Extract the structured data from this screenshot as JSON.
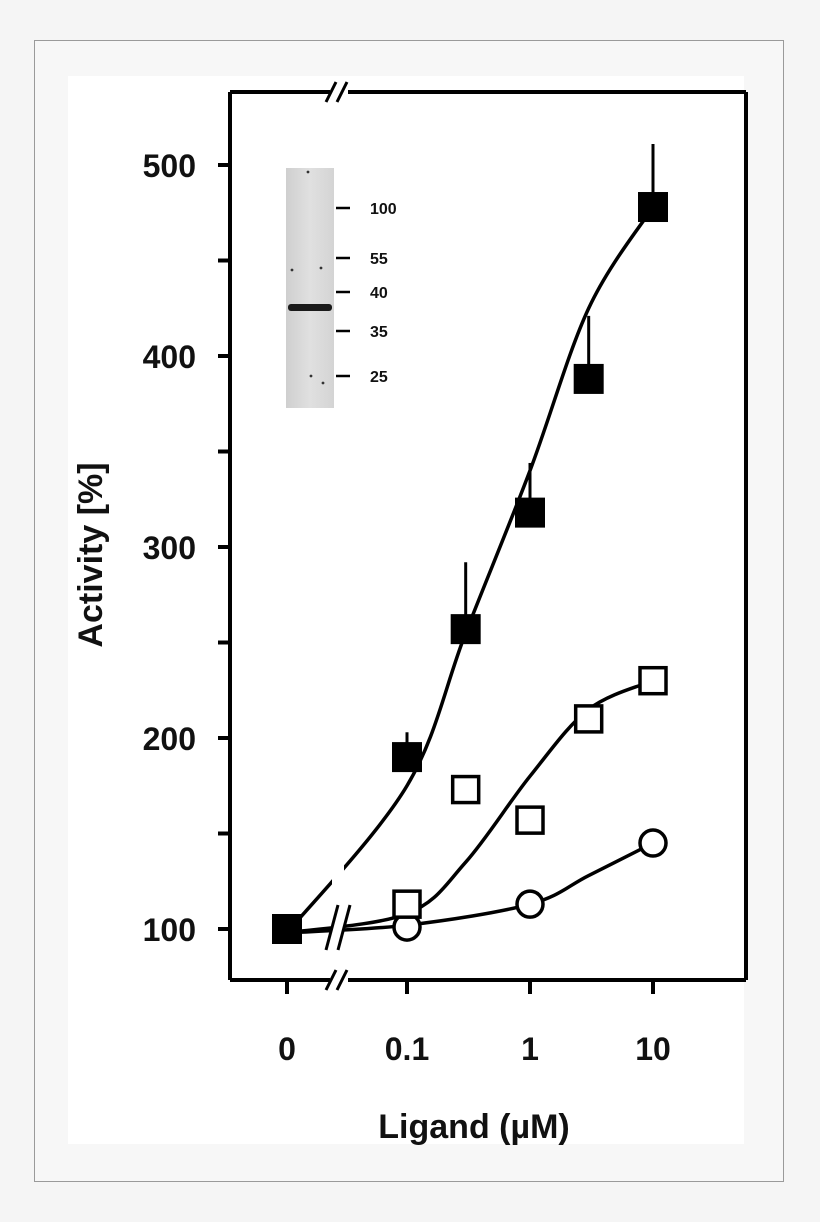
{
  "chart_data": {
    "type": "scatter",
    "xlabel": "Ligand (µM)",
    "ylabel": "Activity [%]",
    "x_scale": "log with broken axis at zero",
    "x_ticks": [
      {
        "value": 0,
        "label": "0"
      },
      {
        "value": 0.1,
        "label": "0.1"
      },
      {
        "value": 1,
        "label": "1"
      },
      {
        "value": 10,
        "label": "10"
      }
    ],
    "y_ticks": [
      {
        "value": 100,
        "label": "100"
      },
      {
        "value": 200,
        "label": "200"
      },
      {
        "value": 300,
        "label": "300"
      },
      {
        "value": 400,
        "label": "400"
      },
      {
        "value": 500,
        "label": "500"
      }
    ],
    "ylim": [
      80,
      540
    ],
    "series": [
      {
        "marker": "filled-square",
        "points": [
          {
            "x": 0,
            "y": 100
          },
          {
            "x": 0.1,
            "y": 190,
            "err": 13
          },
          {
            "x": 0.3,
            "y": 257,
            "err": 35
          },
          {
            "x": 1,
            "y": 318,
            "err": 26
          },
          {
            "x": 3,
            "y": 388,
            "err": 33
          },
          {
            "x": 10,
            "y": 478,
            "err": 33
          }
        ],
        "fit": [
          [
            0,
            98
          ],
          [
            0.1,
            175
          ],
          [
            0.3,
            255
          ],
          [
            1,
            340
          ],
          [
            3,
            425
          ],
          [
            10,
            478
          ]
        ]
      },
      {
        "marker": "open-square",
        "points": [
          {
            "x": 0,
            "y": 100
          },
          {
            "x": 0.1,
            "y": 113
          },
          {
            "x": 0.3,
            "y": 173
          },
          {
            "x": 1,
            "y": 157
          },
          {
            "x": 3,
            "y": 210
          },
          {
            "x": 10,
            "y": 230
          }
        ],
        "fit": [
          [
            0,
            98
          ],
          [
            0.1,
            108
          ],
          [
            0.3,
            135
          ],
          [
            1,
            180
          ],
          [
            3,
            215
          ],
          [
            10,
            230
          ]
        ]
      },
      {
        "marker": "open-circle",
        "points": [
          {
            "x": 0,
            "y": 100
          },
          {
            "x": 0.1,
            "y": 101
          },
          {
            "x": 1,
            "y": 113
          },
          {
            "x": 10,
            "y": 145
          }
        ],
        "fit": [
          [
            0,
            98
          ],
          [
            0.1,
            102
          ],
          [
            1,
            113
          ],
          [
            3,
            128
          ],
          [
            10,
            145
          ]
        ]
      }
    ],
    "inset": {
      "type": "gel-blot",
      "markers": [
        "100",
        "55",
        "40",
        "35",
        "25"
      ]
    }
  }
}
